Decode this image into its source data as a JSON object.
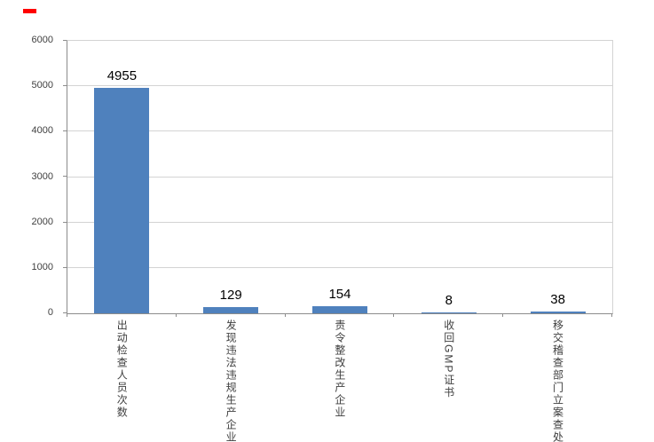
{
  "chart_data": {
    "type": "bar",
    "title": "",
    "xlabel": "",
    "ylabel": "",
    "categories": [
      "出动检查人员次数",
      "发现违法违规生产企业",
      "责令整改生产企业",
      "收回GMP证书",
      "移交稽查部门立案查处"
    ],
    "values": [
      4955,
      129,
      154,
      8,
      38
    ],
    "data_labels": [
      "4955",
      "129",
      "154",
      "8",
      "38"
    ],
    "ylim": [
      0,
      6000
    ],
    "yticks": [
      0,
      1000,
      2000,
      3000,
      4000,
      5000,
      6000
    ],
    "grid": true,
    "legend_position": "none",
    "bar_color": "#4f81bd",
    "gridline_color": "#d3d3d3",
    "axis_color": "#8c8c8c",
    "red_mark_color": "#ff0000"
  }
}
